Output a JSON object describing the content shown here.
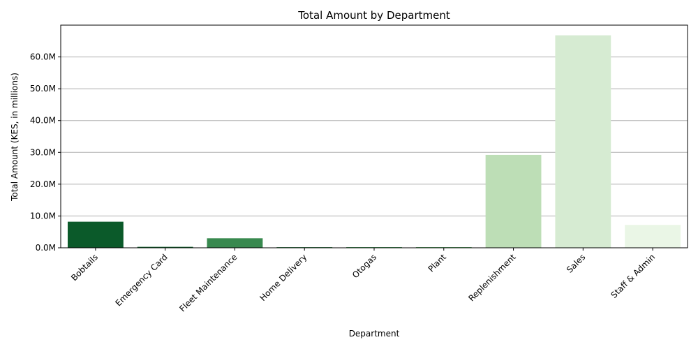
{
  "chart_data": {
    "type": "bar",
    "title": "Total Amount by Department",
    "xlabel": "Department",
    "ylabel": "Total Amount (KES, in millions)",
    "categories": [
      "Bobtails",
      "Emergency Card",
      "Fleet Maintenance",
      "Home Delivery",
      "Otogas",
      "Plant",
      "Replenishment",
      "Sales",
      "Staff & Admin"
    ],
    "values": [
      8.2,
      0.3,
      3.0,
      0.2,
      0.2,
      0.2,
      29.2,
      66.8,
      7.2
    ],
    "colors": [
      "#0b5a2a",
      "#116b30",
      "#38894f",
      "#228540",
      "#2f9a48",
      "#46ad55",
      "#bddeb6",
      "#d6ebd2",
      "#eaf6e6"
    ],
    "ylim": [
      0,
      70
    ],
    "yticks": [
      0,
      10,
      20,
      30,
      40,
      50,
      60
    ],
    "ytick_labels": [
      "0.0M",
      "10.0M",
      "20.0M",
      "30.0M",
      "40.0M",
      "50.0M",
      "60.0M"
    ],
    "grid": "y",
    "legend": "none"
  }
}
